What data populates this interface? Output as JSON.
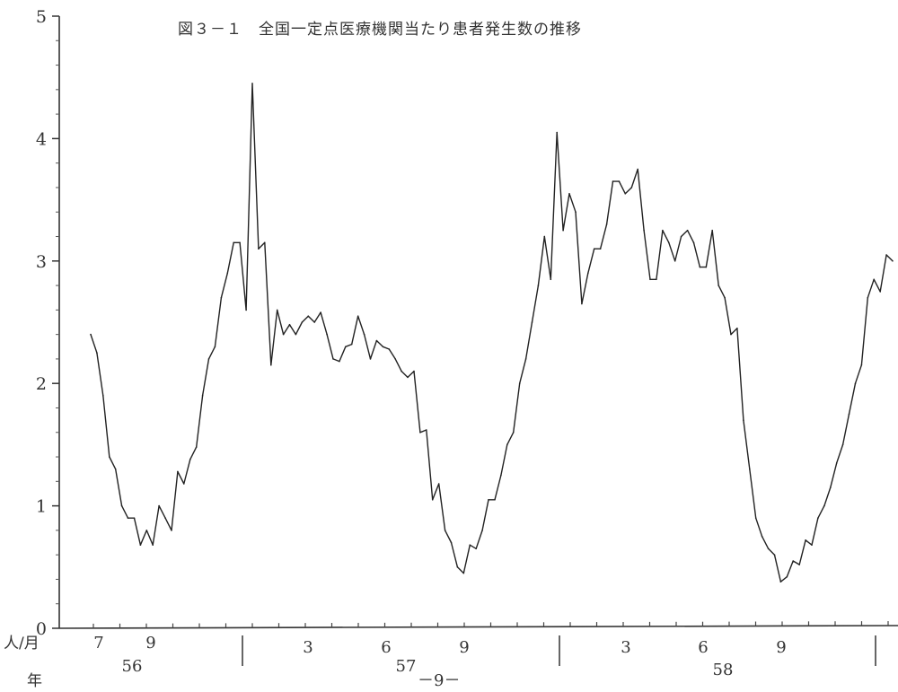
{
  "chart_data": {
    "type": "line",
    "title": "図３－１　全国一定点医療機関当たり患者発生数の推移",
    "ylabel_unit": "人/月",
    "xlabel_unit": "年",
    "ylim": [
      0,
      5
    ],
    "yticks": [
      "0",
      "1",
      "2",
      "3",
      "4",
      "5"
    ],
    "month_labels": [
      "7",
      "9",
      "3",
      "6",
      "9",
      "3",
      "6",
      "9"
    ],
    "year_labels": [
      "56",
      "57",
      "58"
    ],
    "grid": false,
    "series": [
      {
        "values": [
          2.4,
          2.25,
          1.9,
          1.4,
          1.3,
          1.0,
          0.9,
          0.9,
          0.68,
          0.8,
          0.68,
          1.0,
          0.9,
          0.8,
          1.28,
          1.18,
          1.38,
          1.48,
          1.9,
          2.2,
          2.3,
          2.7,
          2.9,
          3.15,
          3.15,
          2.6,
          4.45,
          3.1,
          3.15,
          2.15,
          2.6,
          2.4,
          2.48,
          2.4,
          2.5,
          2.55,
          2.5,
          2.58,
          2.4,
          2.2,
          2.18,
          2.3,
          2.32,
          2.55,
          2.4,
          2.2,
          2.35,
          2.3,
          2.28,
          2.2,
          2.1,
          2.05,
          2.1,
          1.6,
          1.62,
          1.05,
          1.18,
          0.8,
          0.7,
          0.5,
          0.45,
          0.68,
          0.65,
          0.8,
          1.05,
          1.05,
          1.25,
          1.5,
          1.6,
          2.0,
          2.2,
          2.5,
          2.8,
          3.2,
          2.85,
          4.05,
          3.25,
          3.55,
          3.4,
          2.65,
          2.9,
          3.1,
          3.1,
          3.3,
          3.65,
          3.65,
          3.55,
          3.6,
          3.75,
          3.25,
          2.85,
          2.85,
          3.25,
          3.15,
          3.0,
          3.2,
          3.25,
          3.15,
          2.95,
          2.95,
          3.25,
          2.8,
          2.7,
          2.4,
          2.45,
          1.7,
          1.3,
          0.9,
          0.75,
          0.65,
          0.6,
          0.38,
          0.42,
          0.55,
          0.52,
          0.72,
          0.68,
          0.9,
          1.0,
          1.15,
          1.35,
          1.5,
          1.75,
          2.0,
          2.15,
          2.7,
          2.85,
          2.75,
          3.05,
          3.0
        ]
      }
    ]
  },
  "page": {
    "number": "－9－"
  }
}
